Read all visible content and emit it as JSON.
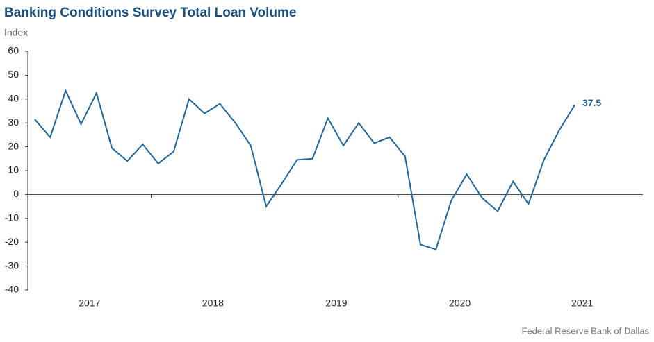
{
  "chart_data": {
    "type": "line",
    "title": "Banking Conditions Survey Total Loan Volume",
    "y_label": "Index",
    "source": "Federal Reserve Bank of Dallas",
    "categories": [
      null,
      null,
      null,
      null,
      null,
      null,
      null,
      null,
      null,
      null,
      null,
      null,
      null,
      null,
      null,
      null,
      null,
      null,
      null,
      null,
      null,
      null,
      null,
      null,
      null,
      null,
      null,
      null,
      null,
      null,
      null,
      null,
      null,
      null,
      null,
      null
    ],
    "year_groups": [
      "2017",
      "2018",
      "2019",
      "2020",
      "2021"
    ],
    "points_per_year": 8,
    "series": [
      {
        "name": "Total Loan Volume",
        "color": "#1f669c",
        "values": [
          31.5,
          24,
          43.5,
          29.5,
          42.5,
          19.5,
          14,
          21,
          13,
          18,
          40,
          34,
          38,
          30,
          20.5,
          -5,
          4.5,
          14.5,
          15,
          32,
          20.5,
          30,
          21.5,
          24,
          16,
          -21,
          -23,
          -2.5,
          8.5,
          -1.5,
          -7,
          5.5,
          -4,
          14.5,
          27,
          37.5
        ],
        "value_labels": {
          "35": "37.5"
        }
      }
    ],
    "ylim": [
      -40,
      60
    ],
    "yticks": [
      -40,
      -30,
      -20,
      -10,
      0,
      10,
      20,
      30,
      40,
      50,
      60
    ]
  }
}
